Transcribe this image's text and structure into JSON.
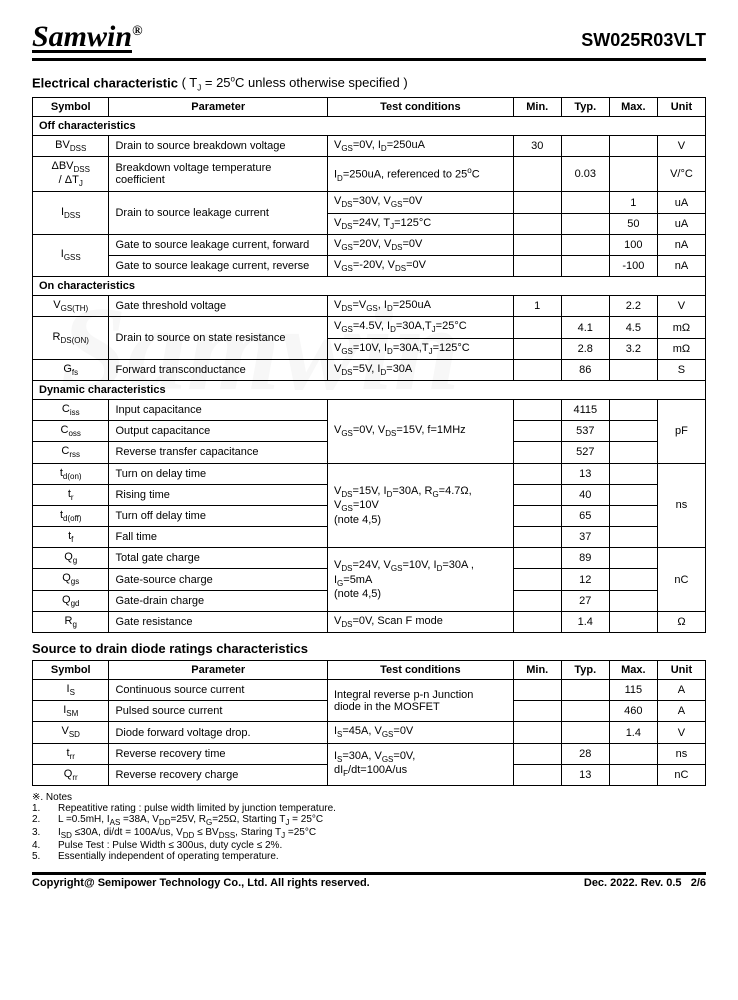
{
  "header": {
    "logo": "Samwin",
    "part": "SW025R03VLT"
  },
  "sec1": {
    "title": "Electrical characteristic",
    "cond": " ( T",
    "cond2": " = 25",
    "cond3": "C unless otherwise specified )",
    "cols": {
      "sym": "Symbol",
      "param": "Parameter",
      "tc": "Test conditions",
      "min": "Min.",
      "typ": "Typ.",
      "max": "Max.",
      "unit": "Unit"
    },
    "off_hdr": "Off characteristics",
    "on_hdr": "On characteristics",
    "dyn_hdr": "Dynamic characteristics",
    "rows": {
      "bvdss": {
        "sym": "BV",
        "sub": "DSS",
        "param": "Drain to source breakdown voltage",
        "cond": "V",
        "cond2": "=0V, I",
        "cond3": "=250uA",
        "min": "30",
        "unit": "V"
      },
      "dbvdss": {
        "sym1": "ΔBV",
        "sub1": "DSS",
        "sym2": "/ ΔT",
        "sub2": "J",
        "param": "Breakdown voltage temperature coefficient",
        "cond": "I",
        "cond2": "=250uA, referenced to 25",
        "cond3": "C",
        "typ": "0.03",
        "unit": "V/°C"
      },
      "idss1": {
        "sym": "I",
        "sub": "DSS",
        "param": "Drain to source leakage current",
        "cond": "V",
        "cond2": "=30V, V",
        "cond3": "=0V",
        "max": "1",
        "unit": "uA"
      },
      "idss2": {
        "cond": "V",
        "cond2": "=24V, T",
        "cond3": "=125°C",
        "max": "50",
        "unit": "uA"
      },
      "igss1": {
        "sym": "I",
        "sub": "GSS",
        "param1": "Gate to source leakage current, forward",
        "cond1": "V",
        "cond1b": "=20V, V",
        "cond1c": "=0V",
        "max1": "100",
        "unit1": "nA"
      },
      "igss2": {
        "param": "Gate to source leakage current, reverse",
        "cond": "V",
        "cond2": "=-20V, V",
        "cond3": "=0V",
        "max": "-100",
        "unit": "nA"
      },
      "vgsth": {
        "sym": "V",
        "sub": "GS(TH)",
        "param": "Gate threshold voltage",
        "cond": "V",
        "cond2": "=V",
        "cond3": ", I",
        "cond4": "=250uA",
        "min": "1",
        "max": "2.2",
        "unit": "V"
      },
      "rdson1": {
        "sym": "R",
        "sub": "DS(ON)",
        "param": "Drain to source on state resistance",
        "cond": "V",
        "cond2": "=4.5V, I",
        "cond3": "=30A,T",
        "cond4": "=25°C",
        "typ": "4.1",
        "max": "4.5",
        "unit": "mΩ"
      },
      "rdson2": {
        "cond": "V",
        "cond2": "=10V, I",
        "cond3": "=30A,T",
        "cond4": "=125°C",
        "typ": "2.8",
        "max": "3.2",
        "unit": "mΩ"
      },
      "gfs": {
        "sym": "G",
        "sub": "fs",
        "param": "Forward transconductance",
        "cond": "V",
        "cond2": "=5V, I",
        "cond3": "=30A",
        "typ": "86",
        "unit": "S"
      },
      "ciss": {
        "sym": "C",
        "sub": "iss",
        "param": "Input capacitance",
        "cond": "V",
        "cond2": "=0V, V",
        "cond3": "=15V, f=1MHz",
        "typ": "4115",
        "unit": "pF"
      },
      "coss": {
        "sym": "C",
        "sub": "oss",
        "param": "Output capacitance",
        "typ": "537"
      },
      "crss": {
        "sym": "C",
        "sub": "rss",
        "param": "Reverse transfer capacitance",
        "typ": "527"
      },
      "tdon": {
        "sym": "t",
        "sub": "d(on)",
        "param": "Turn on delay time",
        "cond1": "V",
        "cond1b": "=15V, I",
        "cond1c": "=30A, R",
        "cond1d": "=4.7Ω,",
        "cond2a": "V",
        "cond2b": "=10V",
        "cond3": "(note 4,5)",
        "typ": "13",
        "unit": "ns"
      },
      "tr": {
        "sym": "t",
        "sub": "r",
        "param": "Rising time",
        "typ": "40"
      },
      "tdoff": {
        "sym": "t",
        "sub": "d(off)",
        "param": "Turn off delay time",
        "typ": "65"
      },
      "tf": {
        "sym": "t",
        "sub": "f",
        "param": "Fall time",
        "typ": "37"
      },
      "qg": {
        "sym": "Q",
        "sub": "g",
        "param": "Total gate charge",
        "cond1": "V",
        "cond1b": "=24V, V",
        "cond1c": "=10V, I",
        "cond1d": "=30A ,",
        "cond2a": "I",
        "cond2b": "=5mA",
        "cond3": "(note 4,5)",
        "typ": "89",
        "unit": "nC"
      },
      "qgs": {
        "sym": "Q",
        "sub": "gs",
        "param": "Gate-source charge",
        "typ": "12"
      },
      "qgd": {
        "sym": "Q",
        "sub": "gd",
        "param": "Gate-drain charge",
        "typ": "27"
      },
      "rg": {
        "sym": "R",
        "sub": "g",
        "param": "Gate resistance",
        "cond": "V",
        "cond2": "=0V, Scan F mode",
        "typ": "1.4",
        "unit": "Ω"
      }
    }
  },
  "sec2": {
    "title": "Source to drain diode ratings characteristics",
    "rows": {
      "is": {
        "sym": "I",
        "sub": "S",
        "param": "Continuous source current",
        "cond1": "Integral reverse p-n Junction",
        "cond2": "diode in the MOSFET",
        "max": "115",
        "unit": "A"
      },
      "ism": {
        "sym": "I",
        "sub": "SM",
        "param": "Pulsed source current",
        "max": "460",
        "unit": "A"
      },
      "vsd": {
        "sym": "V",
        "sub": "SD",
        "param": "Diode forward voltage drop.",
        "cond": "I",
        "cond2": "=45A, V",
        "cond3": "=0V",
        "max": "1.4",
        "unit": "V"
      },
      "trr": {
        "sym": "t",
        "sub": "rr",
        "param": "Reverse recovery time",
        "cond1": "I",
        "cond1b": "=30A, V",
        "cond1c": "=0V,",
        "cond2": "dI",
        "cond2b": "/dt=100A/us",
        "typ": "28",
        "unit": "ns"
      },
      "qrr": {
        "sym": "Q",
        "sub": "rr",
        "param": "Reverse recovery charge",
        "typ": "13",
        "unit": "nC"
      }
    }
  },
  "notes": {
    "hdr": "※. Notes",
    "n1": "Repeatitive rating : pulse width limited by junction temperature.",
    "n2": "L =0.5mH, I",
    "n2b": " =38A, V",
    "n2c": "=25V, R",
    "n2d": "=25Ω, Starting T",
    "n2e": " = 25°C",
    "n3": "I",
    "n3b": " ≤30A, di/dt = 100A/us, V",
    "n3c": " ≤ BV",
    "n3d": ", Staring T",
    "n3e": " =25°C",
    "n4": "Pulse Test : Pulse Width ≤ 300us, duty cycle ≤ 2%.",
    "n5": "Essentially independent of operating temperature."
  },
  "footer": {
    "left": "Copyright@ Semipower Technology Co., Ltd. All rights reserved.",
    "right1": "Dec. 2022. Rev. 0.5",
    "right2": "2/6"
  }
}
